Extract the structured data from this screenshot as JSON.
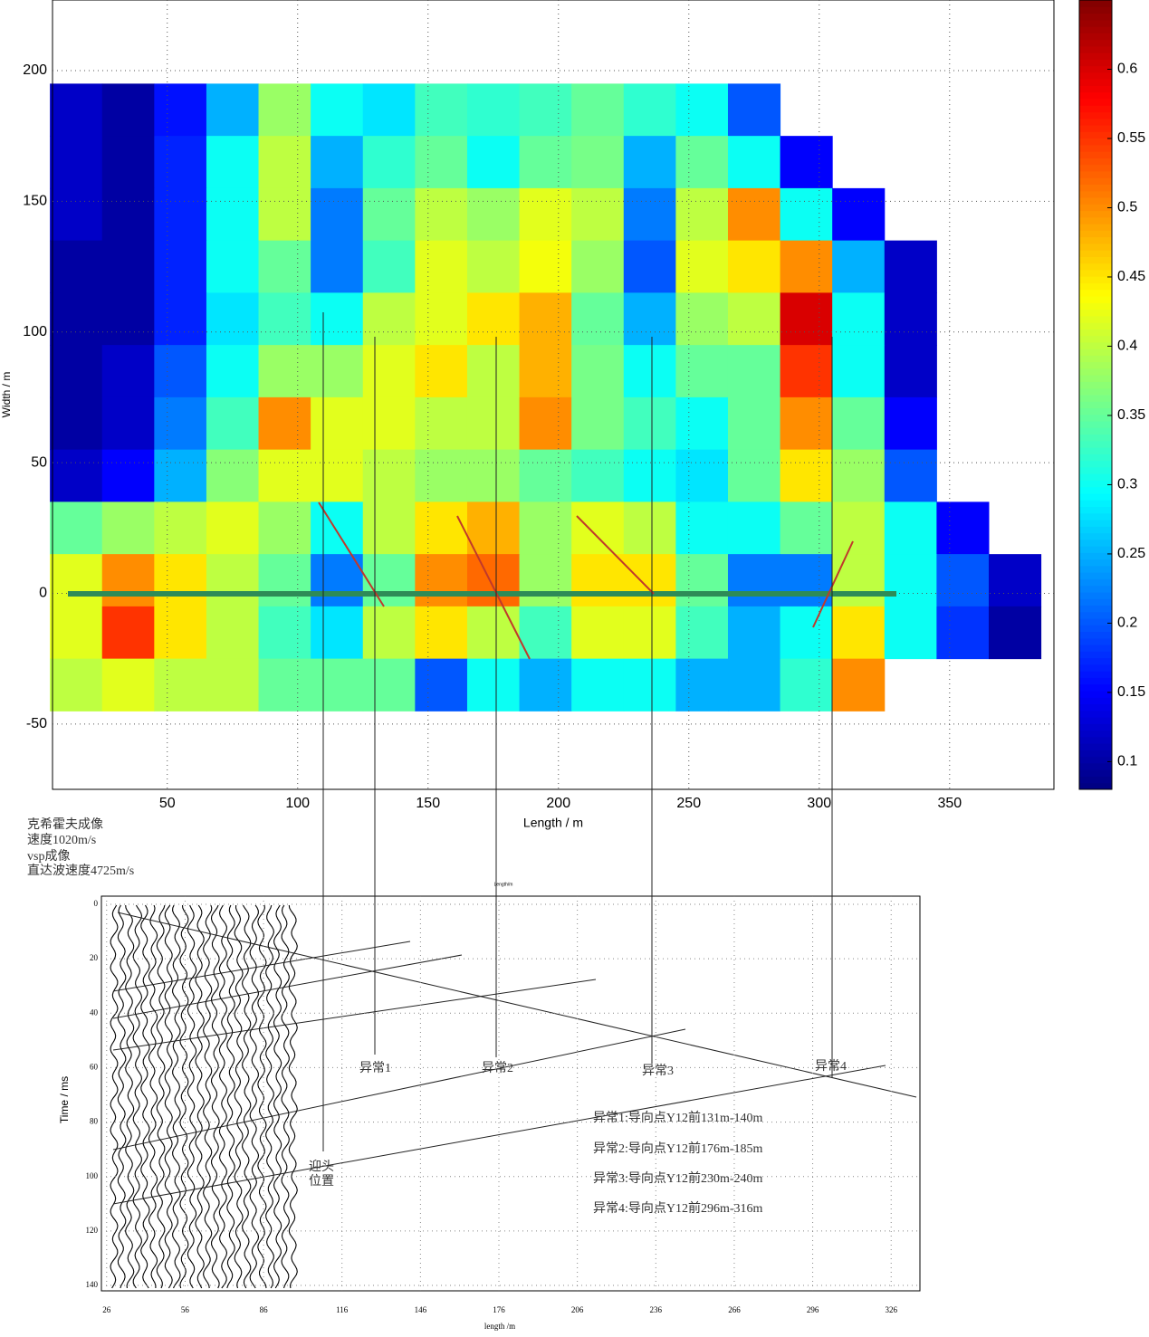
{
  "chart_data": [
    {
      "type": "contour",
      "xlabel": "Length / m",
      "ylabel": "Width / m",
      "xlim": [
        6,
        390
      ],
      "ylim": [
        -75,
        227
      ],
      "xticks": [
        50,
        100,
        150,
        200,
        250,
        300,
        350
      ],
      "yticks": [
        -50,
        0,
        50,
        100,
        150,
        200
      ],
      "clim": [
        0.08,
        0.65
      ],
      "cticks": [
        0.1,
        0.15,
        0.2,
        0.25,
        0.3,
        0.35,
        0.4,
        0.45,
        0.5,
        0.55,
        0.6
      ],
      "grid": true,
      "x": [
        15,
        35,
        55,
        75,
        95,
        115,
        135,
        155,
        175,
        195,
        215,
        235,
        255,
        275,
        295,
        315,
        335,
        355,
        375
      ],
      "y": [
        185,
        165,
        145,
        125,
        105,
        85,
        65,
        45,
        25,
        5,
        -15,
        -35
      ],
      "z": [
        [
          0.12,
          0.1,
          0.16,
          0.25,
          0.38,
          0.3,
          0.28,
          0.33,
          0.32,
          0.33,
          0.35,
          0.32,
          0.3,
          0.2,
          null,
          null,
          null,
          null,
          null
        ],
        [
          0.12,
          0.1,
          0.17,
          0.3,
          0.4,
          0.25,
          0.32,
          0.35,
          0.3,
          0.35,
          0.36,
          0.25,
          0.35,
          0.3,
          0.15,
          null,
          null,
          null,
          null
        ],
        [
          0.12,
          0.1,
          0.17,
          0.3,
          0.4,
          0.22,
          0.35,
          0.4,
          0.38,
          0.42,
          0.4,
          0.22,
          0.4,
          0.5,
          0.3,
          0.15,
          null,
          null,
          null
        ],
        [
          0.1,
          0.1,
          0.17,
          0.3,
          0.35,
          0.22,
          0.33,
          0.42,
          0.4,
          0.43,
          0.38,
          0.2,
          0.42,
          0.45,
          0.5,
          0.25,
          0.12,
          null,
          null
        ],
        [
          0.1,
          0.1,
          0.17,
          0.28,
          0.33,
          0.3,
          0.4,
          0.42,
          0.45,
          0.48,
          0.35,
          0.25,
          0.38,
          0.4,
          0.6,
          0.3,
          0.12,
          null,
          null
        ],
        [
          0.1,
          0.12,
          0.2,
          0.3,
          0.38,
          0.38,
          0.42,
          0.45,
          0.4,
          0.48,
          0.36,
          0.3,
          0.35,
          0.35,
          0.55,
          0.3,
          0.12,
          null,
          null
        ],
        [
          0.1,
          0.12,
          0.22,
          0.33,
          0.5,
          0.42,
          0.42,
          0.4,
          0.4,
          0.5,
          0.36,
          0.33,
          0.3,
          0.35,
          0.5,
          0.35,
          0.15,
          null,
          null
        ],
        [
          0.12,
          0.15,
          0.25,
          0.37,
          0.42,
          0.42,
          0.4,
          0.38,
          0.38,
          0.35,
          0.33,
          0.3,
          0.28,
          0.35,
          0.45,
          0.38,
          0.2,
          null,
          null
        ],
        [
          0.35,
          0.38,
          0.4,
          0.42,
          0.38,
          0.3,
          0.4,
          0.45,
          0.48,
          0.38,
          0.42,
          0.4,
          0.3,
          0.3,
          0.35,
          0.4,
          0.3,
          0.15,
          null
        ],
        [
          0.42,
          0.5,
          0.45,
          0.4,
          0.35,
          0.22,
          0.35,
          0.5,
          0.52,
          0.38,
          0.45,
          0.45,
          0.35,
          0.22,
          0.22,
          0.4,
          0.3,
          0.2,
          0.12
        ],
        [
          0.42,
          0.55,
          0.45,
          0.4,
          0.33,
          0.28,
          0.4,
          0.45,
          0.4,
          0.33,
          0.42,
          0.42,
          0.33,
          0.25,
          0.3,
          0.45,
          0.3,
          0.18,
          0.1
        ],
        [
          0.4,
          0.42,
          0.4,
          0.4,
          0.35,
          0.35,
          0.35,
          0.2,
          0.3,
          0.25,
          0.3,
          0.3,
          0.25,
          0.25,
          0.32,
          0.5,
          null,
          null,
          null
        ]
      ],
      "annotations": [
        "克希霍夫成像",
        "速度1020m/s",
        "vsp成像",
        "直达波速度4725m/s"
      ]
    },
    {
      "type": "wiggle",
      "title": "Length/m",
      "xlabel": "length /m",
      "ylabel": "Time / ms",
      "xlim": [
        24,
        337
      ],
      "ylim": [
        -3,
        142
      ],
      "y_inverted": true,
      "grid": true,
      "xticks": [
        26,
        56,
        86,
        116,
        146,
        176,
        206,
        236,
        266,
        296,
        326
      ],
      "yticks": [
        0,
        20,
        40,
        60,
        80,
        100,
        120,
        140
      ],
      "annotations": [
        "异常1",
        "异常2",
        "异常3",
        "异常4",
        "迎头",
        "位置",
        "异常1:导向点Y12前131m-140m",
        "异常2:导向点Y12前176m-185m",
        "异常3:导向点Y12前230m-240m",
        "异常4:导向点Y12前296m-316m"
      ]
    }
  ]
}
